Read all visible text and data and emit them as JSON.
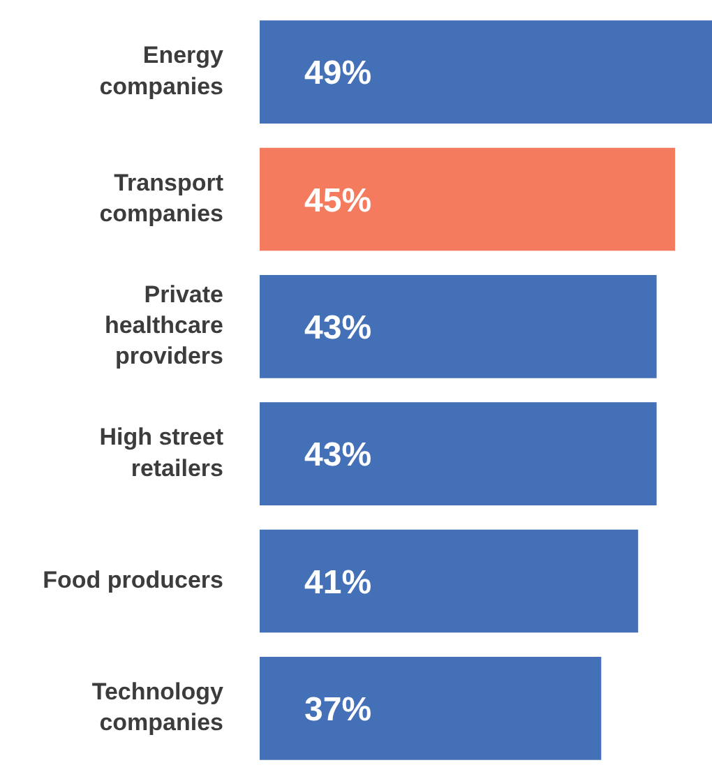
{
  "chart_data": {
    "type": "bar",
    "orientation": "horizontal",
    "categories": [
      "Energy\ncompanies",
      "Transport\ncompanies",
      "Private\nhealthcare\nproviders",
      "High street\nretailers",
      "Food producers",
      "Technology\ncompanies"
    ],
    "values": [
      49,
      45,
      43,
      43,
      41,
      37
    ],
    "colors": [
      "#4470b7",
      "#f47b5d",
      "#4470b7",
      "#4470b7",
      "#4470b7",
      "#4470b7"
    ],
    "value_labels": [
      "49%",
      "45%",
      "43%",
      "43%",
      "41%",
      "37%"
    ],
    "xlim": [
      0,
      49
    ],
    "tick_labels": "y"
  }
}
